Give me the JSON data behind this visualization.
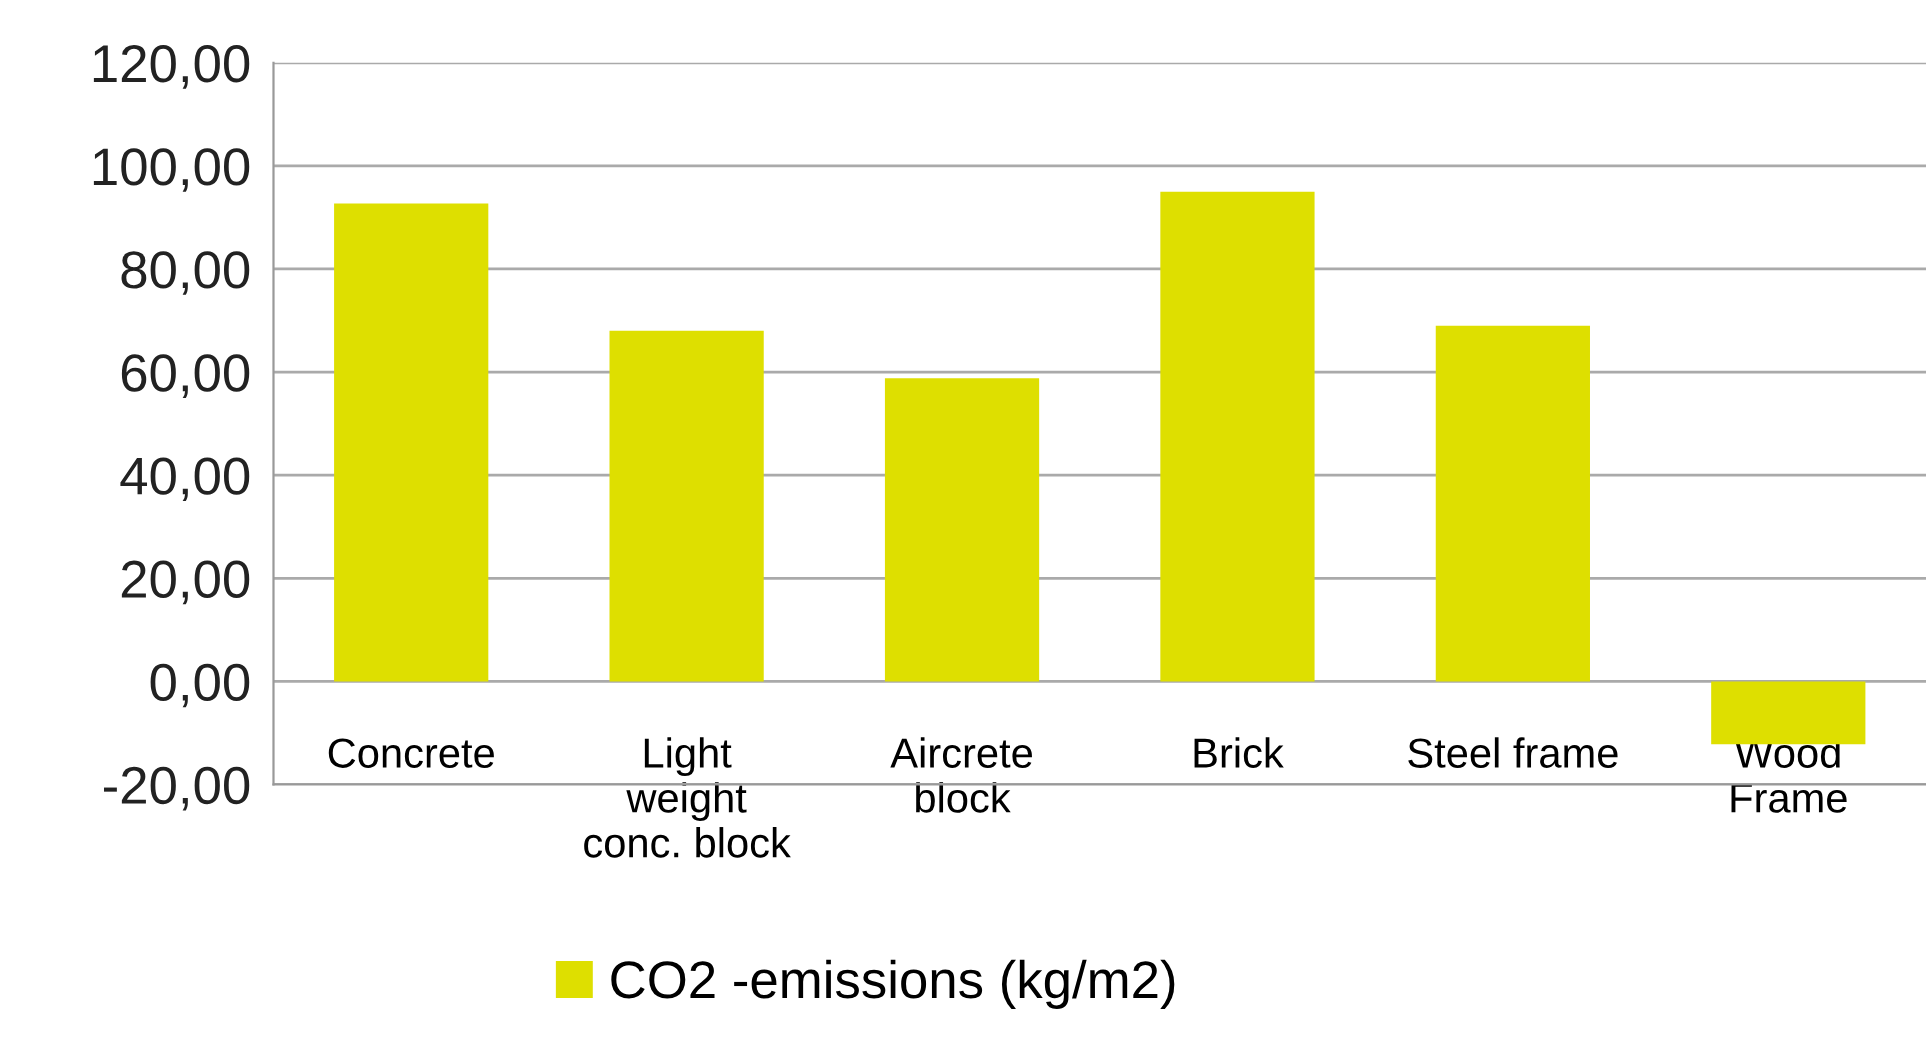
{
  "chart_data": {
    "type": "bar",
    "categories": [
      "Concrete",
      "Light\nweight\nconc. block",
      "Aircrete\nblock",
      "Brick",
      "Steel frame",
      "Wood\nFrame"
    ],
    "series": [
      {
        "name": "CO2 -emissions (kg/m2)",
        "color": "#dedf00",
        "values": [
          92.7,
          68,
          58.8,
          95,
          69,
          -12.2
        ]
      }
    ],
    "ylim": [
      -20,
      120
    ],
    "yticks": [
      {
        "value": -20,
        "label": "-20,00"
      },
      {
        "value": 0,
        "label": "0,00"
      },
      {
        "value": 20,
        "label": "20,00"
      },
      {
        "value": 40,
        "label": "40,00"
      },
      {
        "value": 60,
        "label": "60,00"
      },
      {
        "value": 80,
        "label": "80,00"
      },
      {
        "value": 100,
        "label": "100,00"
      },
      {
        "value": 120,
        "label": "120,00"
      }
    ],
    "grid": "y",
    "legend": "bottom"
  }
}
